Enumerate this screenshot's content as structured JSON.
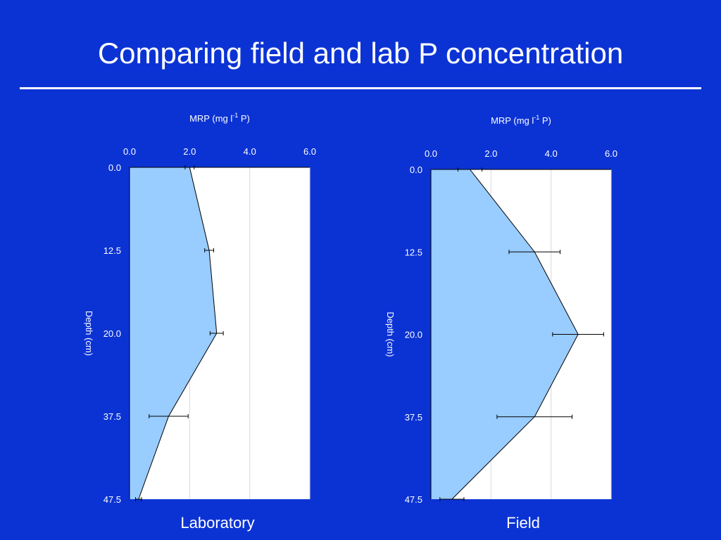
{
  "slide": {
    "title": "Comparing field and lab P concentration"
  },
  "chart_data": [
    {
      "type": "area",
      "caption": "Laboratory",
      "xlabel": "MRP (mg l",
      "xlabel_sup": "-1",
      "xlabel_suffix": " P)",
      "ylabel": "Depth (cm)",
      "x_axis_position": "top",
      "y_axis_direction": "down",
      "xlim": [
        0,
        6
      ],
      "x_ticks": [
        "0.0",
        "2.0",
        "4.0",
        "6.0"
      ],
      "y_categories": [
        "0.0",
        "12.5",
        "20.0",
        "37.5",
        "47.5"
      ],
      "values": [
        2.0,
        2.65,
        2.9,
        1.3,
        0.3
      ],
      "errors": [
        0.15,
        0.15,
        0.22,
        0.65,
        0.1
      ],
      "grid": true,
      "fill_color": "#99ccff",
      "line_color": "#000000"
    },
    {
      "type": "area",
      "caption": "Field",
      "xlabel": "MRP (mg l",
      "xlabel_sup": "-1",
      "xlabel_suffix": " P)",
      "ylabel": "Depth (cm)",
      "x_axis_position": "top",
      "y_axis_direction": "down",
      "xlim": [
        0,
        6
      ],
      "x_ticks": [
        "0.0",
        "2.0",
        "4.0",
        "6.0"
      ],
      "y_categories": [
        "0.0",
        "12.5",
        "20.0",
        "37.5",
        "47.5"
      ],
      "values": [
        1.3,
        3.45,
        4.9,
        3.45,
        0.7
      ],
      "errors": [
        0.4,
        0.85,
        0.85,
        1.25,
        0.4
      ],
      "grid": true,
      "fill_color": "#99ccff",
      "line_color": "#000000"
    }
  ]
}
